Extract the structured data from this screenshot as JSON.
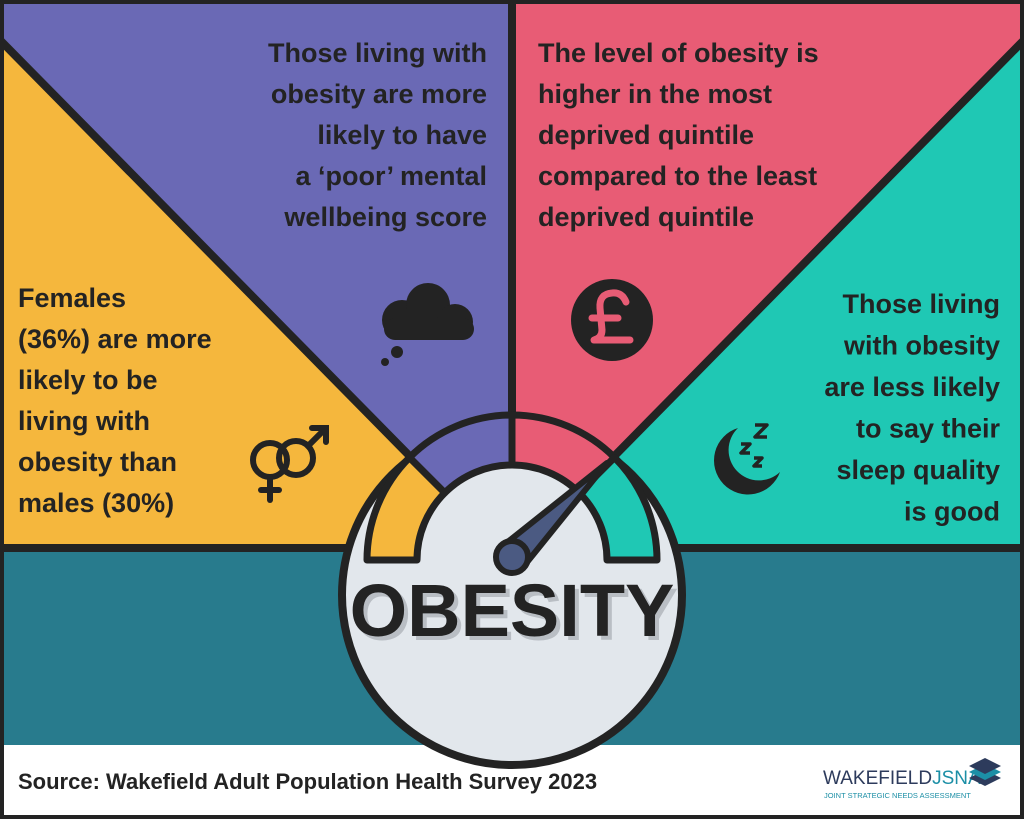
{
  "panels": [
    {
      "lines": [
        "Those living with",
        "obesity are more",
        "likely to have",
        "a ‘poor’ mental",
        "wellbeing score"
      ]
    },
    {
      "lines": [
        "The level of obesity is",
        "higher in the most",
        "deprived quintile",
        "compared to the least",
        "deprived quintile"
      ]
    },
    {
      "lines": [
        "Females",
        "(36%) are more",
        "likely to be",
        "living with",
        "obesity than",
        "males (30%)"
      ]
    },
    {
      "lines": [
        "Those living",
        "with obesity",
        "are less likely",
        "to say their",
        "sleep quality",
        "is good"
      ]
    }
  ],
  "gauge": {
    "label": "OBESITY"
  },
  "footer": {
    "source": "Source: Wakefield Adult Population Health Survey 2023",
    "logo": {
      "name": "WAKEFIELD",
      "accent": "JSNA",
      "tagline": "JOINT STRATEGIC NEEDS ASSESSMENT"
    }
  }
}
